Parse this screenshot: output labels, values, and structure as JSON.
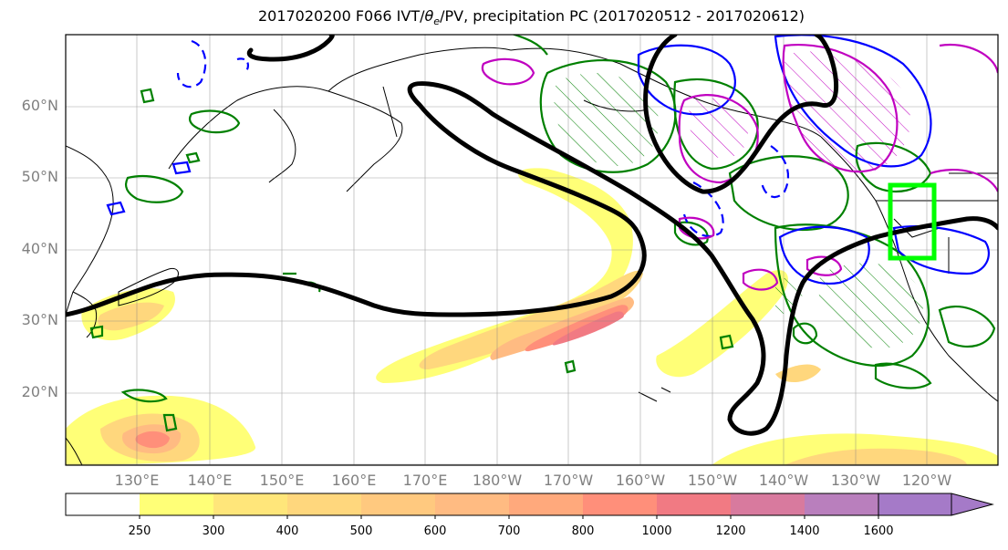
{
  "title": {
    "prefix": "2017020200 F066 IVT/",
    "theta": "θ",
    "theta_sub": "e",
    "suffix": "/PV, precipitation PC (2017020512 - 2017020612)"
  },
  "lat_labels": [
    "60°N",
    "50°N",
    "40°N",
    "30°N",
    "20°N"
  ],
  "lon_labels": [
    "130°E",
    "140°E",
    "150°E",
    "160°E",
    "170°E",
    "180°W",
    "170°W",
    "160°W",
    "150°W",
    "140°W",
    "130°W",
    "120°W"
  ],
  "colorbar": {
    "levels": [
      "250",
      "300",
      "400",
      "500",
      "600",
      "700",
      "800",
      "1000",
      "1200",
      "1400",
      "1600"
    ],
    "colors": [
      "#ffffff",
      "#ffff77",
      "#ffe67a",
      "#ffd77d",
      "#ffc97f",
      "#ffbb82",
      "#ffa97c",
      "#ff8f7a",
      "#f17a83",
      "#d87a9e",
      "#b97fbd",
      "#a57ac8"
    ]
  },
  "colors": {
    "ivt_contour": "#000000",
    "precip_positive": "#008000",
    "precip_negative": "#0000ff",
    "pv": "#c000c0",
    "target_box": "#00ff00"
  }
}
